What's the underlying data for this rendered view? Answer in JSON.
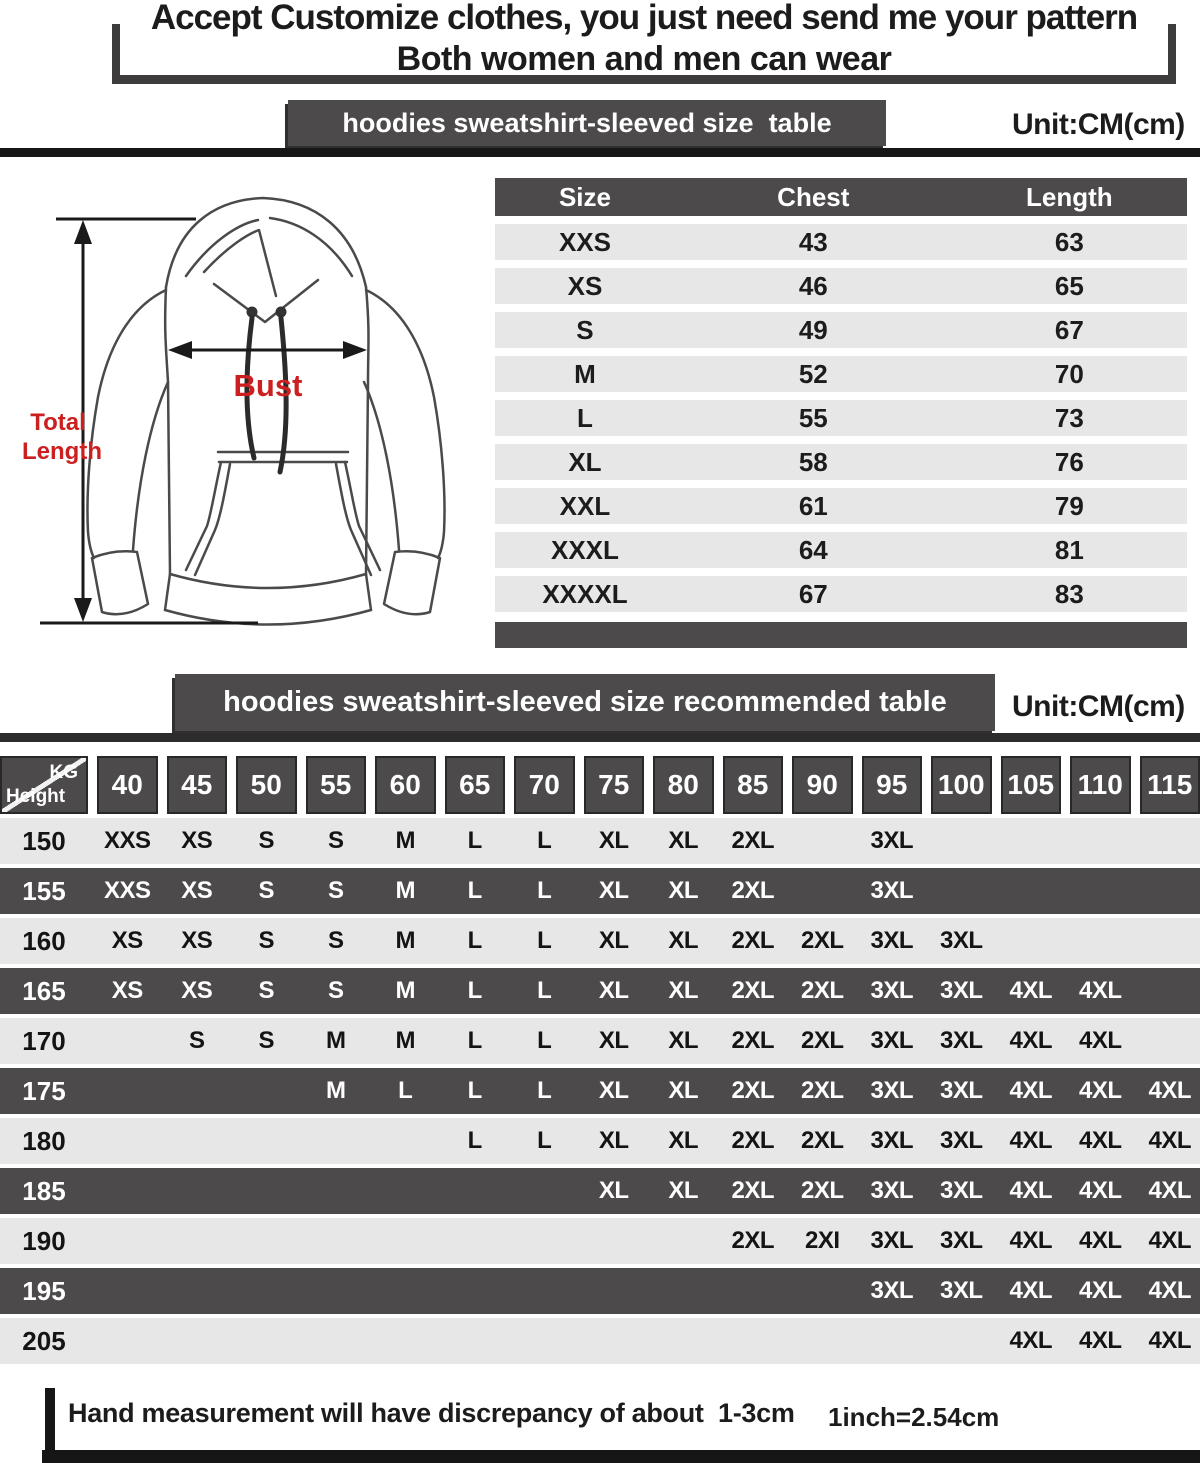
{
  "title": {
    "line1": "Accept Customize clothes, you just need send me your pattern",
    "line2": "Both women and men can wear"
  },
  "size_section": {
    "banner": "hoodies sweatshirt-sleeved size  table",
    "unit": "Unit:CM(cm)"
  },
  "diagram": {
    "bust": "Bust",
    "total_length_line1": "Total",
    "total_length_line2": "Length"
  },
  "size_table": {
    "columns": [
      "Size",
      "Chest",
      "Length"
    ],
    "rows": [
      [
        "XXS",
        "43",
        "63"
      ],
      [
        "XS",
        "46",
        "65"
      ],
      [
        "S",
        "49",
        "67"
      ],
      [
        "M",
        "52",
        "70"
      ],
      [
        "L",
        "55",
        "73"
      ],
      [
        "XL",
        "58",
        "76"
      ],
      [
        "XXL",
        "61",
        "79"
      ],
      [
        "XXXL",
        "64",
        "81"
      ],
      [
        "XXXXL",
        "67",
        "83"
      ]
    ]
  },
  "rec_section": {
    "banner": "hoodies sweatshirt-sleeved size recommended table",
    "unit": "Unit:CM(cm)"
  },
  "rec_table": {
    "corner_top": "KG",
    "corner_bottom": "Height",
    "weights": [
      "40",
      "45",
      "50",
      "55",
      "60",
      "65",
      "70",
      "75",
      "80",
      "85",
      "90",
      "95",
      "100",
      "105",
      "110",
      "115"
    ],
    "rows": [
      {
        "height": "150",
        "values": [
          "XXS",
          "XS",
          "S",
          "S",
          "M",
          "L",
          "L",
          "XL",
          "XL",
          "2XL",
          "",
          "3XL",
          "",
          "",
          "",
          ""
        ]
      },
      {
        "height": "155",
        "values": [
          "XXS",
          "XS",
          "S",
          "S",
          "M",
          "L",
          "L",
          "XL",
          "XL",
          "2XL",
          "",
          "3XL",
          "",
          "",
          "",
          ""
        ]
      },
      {
        "height": "160",
        "values": [
          "XS",
          "XS",
          "S",
          "S",
          "M",
          "L",
          "L",
          "XL",
          "XL",
          "2XL",
          "2XL",
          "3XL",
          "3XL",
          "",
          "",
          ""
        ]
      },
      {
        "height": "165",
        "values": [
          "XS",
          "XS",
          "S",
          "S",
          "M",
          "L",
          "L",
          "XL",
          "XL",
          "2XL",
          "2XL",
          "3XL",
          "3XL",
          "4XL",
          "4XL",
          ""
        ]
      },
      {
        "height": "170",
        "values": [
          "",
          "S",
          "S",
          "M",
          "M",
          "L",
          "L",
          "XL",
          "XL",
          "2XL",
          "2XL",
          "3XL",
          "3XL",
          "4XL",
          "4XL",
          ""
        ]
      },
      {
        "height": "175",
        "values": [
          "",
          "",
          "",
          "M",
          "L",
          "L",
          "L",
          "XL",
          "XL",
          "2XL",
          "2XL",
          "3XL",
          "3XL",
          "4XL",
          "4XL",
          "4XL"
        ]
      },
      {
        "height": "180",
        "values": [
          "",
          "",
          "",
          "",
          "",
          "L",
          "L",
          "XL",
          "XL",
          "2XL",
          "2XL",
          "3XL",
          "3XL",
          "4XL",
          "4XL",
          "4XL"
        ]
      },
      {
        "height": "185",
        "values": [
          "",
          "",
          "",
          "",
          "",
          "",
          "",
          "XL",
          "XL",
          "2XL",
          "2XL",
          "3XL",
          "3XL",
          "4XL",
          "4XL",
          "4XL"
        ]
      },
      {
        "height": "190",
        "values": [
          "",
          "",
          "",
          "",
          "",
          "",
          "",
          "",
          "",
          "2XL",
          "2XI",
          "3XL",
          "3XL",
          "4XL",
          "4XL",
          "4XL"
        ]
      },
      {
        "height": "195",
        "values": [
          "",
          "",
          "",
          "",
          "",
          "",
          "",
          "",
          "",
          "",
          "",
          "3XL",
          "3XL",
          "4XL",
          "4XL",
          "4XL"
        ]
      },
      {
        "height": "205",
        "values": [
          "",
          "",
          "",
          "",
          "",
          "",
          "",
          "",
          "",
          "",
          "",
          "",
          "",
          "4XL",
          "4XL",
          "4XL"
        ]
      }
    ]
  },
  "footer": {
    "note": "Hand measurement will have discrepancy of about  1-3cm",
    "conversion": "1inch=2.54cm"
  },
  "colors": {
    "dark_gray": "#4c4a4a",
    "light_row": "#e8e7e7",
    "accent_red": "#cc1f1f",
    "bar_black": "#161616"
  }
}
